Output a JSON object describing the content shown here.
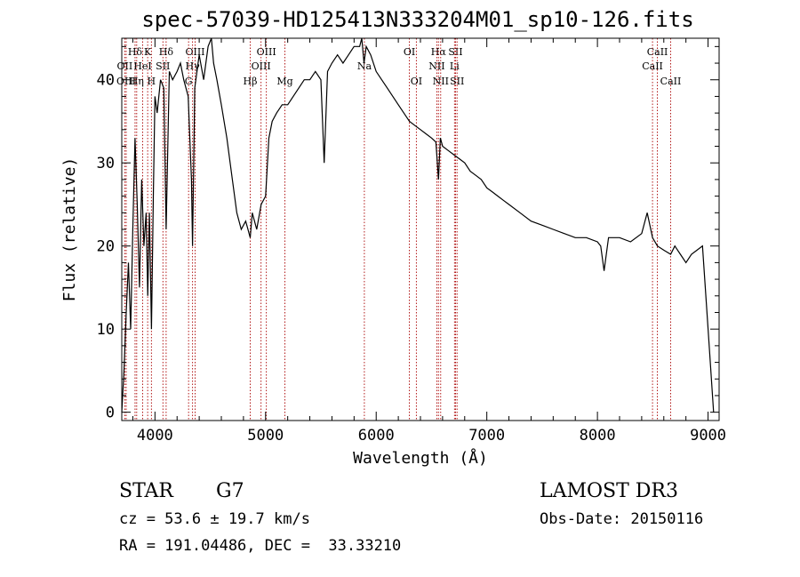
{
  "chart_data": {
    "type": "line",
    "title": "spec-57039-HD125413N333204M01_sp10-126.fits",
    "xlabel": "Wavelength (Å)",
    "ylabel": "Flux (relative)",
    "xlim": [
      3700,
      9100
    ],
    "ylim": [
      -1,
      45
    ],
    "xticks": [
      4000,
      5000,
      6000,
      7000,
      8000,
      9000
    ],
    "yticks": [
      0,
      10,
      20,
      30,
      40
    ],
    "grid": false,
    "line_color": "#000000",
    "marker_color": "#aa0000",
    "series": [
      {
        "x": [
          3700,
          3720,
          3740,
          3760,
          3780,
          3800,
          3820,
          3840,
          3860,
          3880,
          3900,
          3920,
          3935,
          3950,
          3968,
          3985,
          4000,
          4020,
          4050,
          4080,
          4101,
          4130,
          4160,
          4200,
          4230,
          4260,
          4300,
          4330,
          4340,
          4360,
          4400,
          4440,
          4480,
          4510,
          4530,
          4560,
          4600,
          4650,
          4700,
          4740,
          4780,
          4820,
          4861,
          4880,
          4920,
          4960,
          5000,
          5030,
          5060,
          5100,
          5150,
          5200,
          5250,
          5300,
          5350,
          5400,
          5450,
          5500,
          5530,
          5560,
          5600,
          5650,
          5700,
          5750,
          5800,
          5850,
          5870,
          5890,
          5910,
          5950,
          6000,
          6050,
          6100,
          6150,
          6200,
          6250,
          6300,
          6350,
          6400,
          6450,
          6500,
          6540,
          6563,
          6580,
          6600,
          6650,
          6700,
          6750,
          6800,
          6850,
          6900,
          6950,
          7000,
          7050,
          7100,
          7150,
          7200,
          7300,
          7400,
          7500,
          7600,
          7700,
          7800,
          7900,
          8000,
          8030,
          8060,
          8100,
          8200,
          8300,
          8400,
          8450,
          8498,
          8542,
          8600,
          8662,
          8700,
          8750,
          8800,
          8850,
          8900,
          8950,
          9000,
          9050
        ],
        "y": [
          0,
          5,
          12,
          18,
          10,
          22,
          33,
          25,
          15,
          28,
          20,
          24,
          14,
          24,
          10,
          26,
          38,
          36,
          40,
          39,
          22,
          41,
          40,
          41,
          42,
          40,
          38,
          28,
          20,
          39,
          43,
          40,
          44,
          45,
          42,
          40,
          37,
          33,
          28,
          24,
          22,
          23,
          21,
          24,
          22,
          25,
          26,
          33,
          35,
          36,
          37,
          37,
          38,
          39,
          40,
          40,
          41,
          40,
          30,
          41,
          42,
          43,
          42,
          43,
          44,
          44,
          46,
          42,
          44,
          43,
          41,
          40,
          39,
          38,
          37,
          36,
          35,
          34.5,
          34,
          33.5,
          33,
          32.5,
          28,
          33,
          32,
          31.5,
          31,
          30.5,
          30,
          29,
          28.5,
          28,
          27,
          26.5,
          26,
          25.5,
          25,
          24,
          23,
          22.5,
          22,
          21.5,
          21,
          21,
          20.5,
          20,
          17,
          21,
          21,
          20.5,
          21.5,
          24,
          21,
          20,
          19.5,
          19,
          20,
          19,
          18,
          19,
          19.5,
          20,
          10,
          0
        ]
      }
    ],
    "lines": [
      {
        "label": "Hδ",
        "x": 3820,
        "row": 0
      },
      {
        "label": "OII",
        "x": 3727,
        "row": 1
      },
      {
        "label": "OIII",
        "x": 3740,
        "row": 2
      },
      {
        "label": "K",
        "x": 3934,
        "row": 0
      },
      {
        "label": "HeI",
        "x": 3889,
        "row": 1
      },
      {
        "label": "Hη",
        "x": 3835,
        "row": 2
      },
      {
        "label": "Hδ",
        "x": 4101,
        "row": 0
      },
      {
        "label": "SII",
        "x": 4072,
        "row": 1
      },
      {
        "label": "H",
        "x": 3968,
        "row": 2
      },
      {
        "label": "OIII",
        "x": 4363,
        "row": 0
      },
      {
        "label": "Hγ",
        "x": 4340,
        "row": 1
      },
      {
        "label": "G",
        "x": 4304,
        "row": 2
      },
      {
        "label": "OIII",
        "x": 5007,
        "row": 0
      },
      {
        "label": "OIII",
        "x": 4959,
        "row": 1
      },
      {
        "label": "Hβ",
        "x": 4861,
        "row": 2
      },
      {
        "label": "Mg",
        "x": 5175,
        "row": 2
      },
      {
        "label": "Na",
        "x": 5893,
        "row": 1
      },
      {
        "label": "OI",
        "x": 6300,
        "row": 0
      },
      {
        "label": "OI",
        "x": 6363,
        "row": 2
      },
      {
        "label": "Hα",
        "x": 6563,
        "row": 0
      },
      {
        "label": "NII",
        "x": 6548,
        "row": 1
      },
      {
        "label": "NII",
        "x": 6583,
        "row": 2
      },
      {
        "label": "SII",
        "x": 6717,
        "row": 0
      },
      {
        "label": "Li",
        "x": 6708,
        "row": 1
      },
      {
        "label": "SII",
        "x": 6731,
        "row": 2
      },
      {
        "label": "CaII",
        "x": 8542,
        "row": 0
      },
      {
        "label": "CaII",
        "x": 8498,
        "row": 1
      },
      {
        "label": "CaII",
        "x": 8662,
        "row": 2
      }
    ]
  },
  "info": {
    "class": "STAR",
    "subclass": "G7",
    "survey": "LAMOST DR3",
    "cz": "cz = 53.6 ± 19.7 km/s",
    "obs_date": "Obs-Date: 20150116",
    "coords": "RA = 191.04486, DEC =  33.33210"
  }
}
